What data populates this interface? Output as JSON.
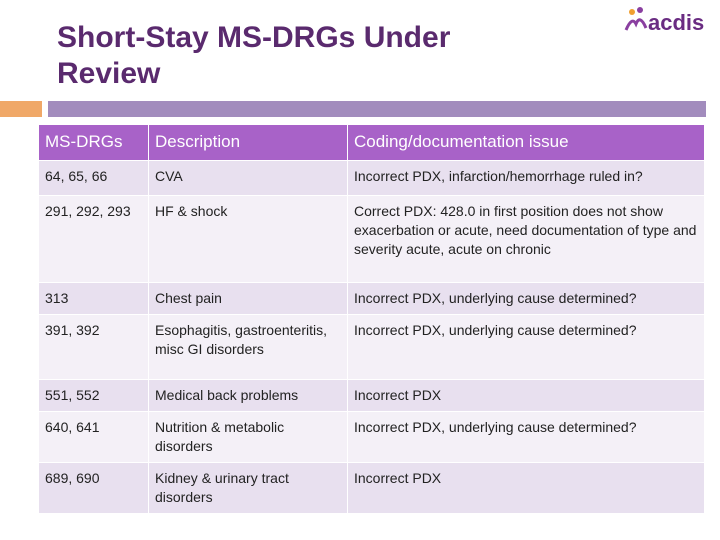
{
  "header": {
    "title": "Short-Stay MS-DRGs Under Review",
    "logo": "acdis"
  },
  "table": {
    "columns": [
      "MS-DRGs",
      "Description",
      "Coding/documentation issue"
    ],
    "rows": [
      [
        "64, 65, 66",
        "CVA",
        "Incorrect PDX, infarction/hemorrhage ruled in?"
      ],
      [
        "291, 292, 293",
        "HF & shock",
        "Correct PDX: 428.0 in first position does not show exacerbation or acute, need documentation of type and severity acute, acute on chronic"
      ],
      [
        "313",
        "Chest pain",
        "Incorrect PDX, underlying cause determined?"
      ],
      [
        "391, 392",
        "Esophagitis, gastroenteritis, misc GI disorders",
        "Incorrect PDX, underlying cause determined?"
      ],
      [
        "551, 552",
        "Medical back problems",
        "Incorrect PDX"
      ],
      [
        "640, 641",
        "Nutrition & metabolic disorders",
        "Incorrect PDX, underlying cause determined?"
      ],
      [
        "689, 690",
        "Kidney & urinary tract disorders",
        "Incorrect PDX"
      ]
    ]
  }
}
